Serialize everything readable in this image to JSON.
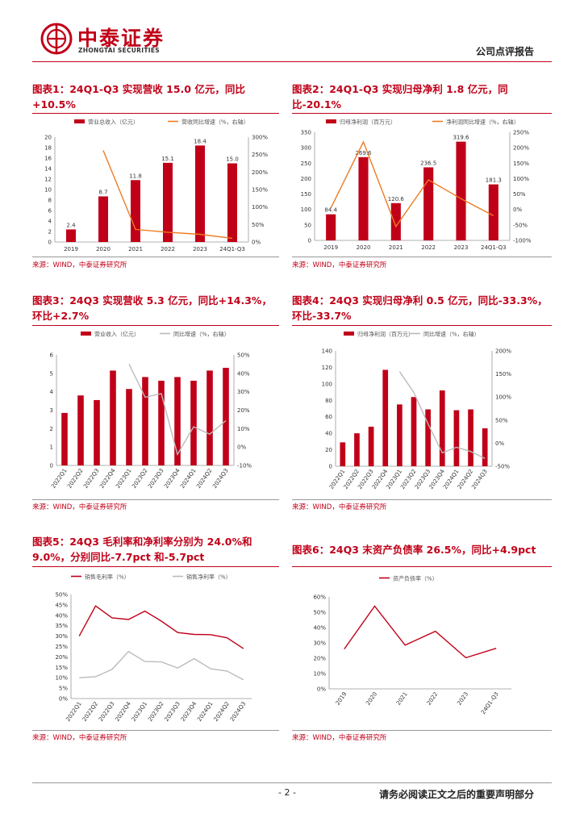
{
  "header": {
    "company_cn": "中泰证券",
    "company_en": "ZHONGTAI SECURITIES",
    "report_type": "公司点评报告",
    "brand_color": "#c00018"
  },
  "footer": {
    "page_number": "- 2 -",
    "disclaimer": "请务必阅读正文之后的重要声明部分"
  },
  "source_text": "来源：WIND，中泰证券研究所",
  "figures": [
    {
      "id": 1,
      "title": "图表1：24Q1-Q3 实现营收 15.0 亿元，同比+10.5%"
    },
    {
      "id": 2,
      "title": "图表2：24Q1-Q3 实现归母净利 1.8 亿元，同比-20.1%"
    },
    {
      "id": 3,
      "title": "图表3：24Q3 实现营收 5.3 亿元，同比+14.3%，环比+2.7%"
    },
    {
      "id": 4,
      "title": "图表4：24Q3 实现归母净利 0.5 亿元，同比-33.3%，环比-33.7%"
    },
    {
      "id": 5,
      "title": "图表5：24Q3 毛利率和净利率分别为 24.0%和 9.0%，分别同比-7.7pct 和-5.7pct"
    },
    {
      "id": 6,
      "title": "图表6：24Q3 末资产负债率 26.5%，同比+4.9pct"
    }
  ],
  "chart_data": [
    {
      "type": "bar",
      "title": "图表1：24Q1-Q3 实现营收 15.0 亿元，同比+10.5%",
      "categories": [
        "2019",
        "2020",
        "2021",
        "2022",
        "2023",
        "24Q1-Q3"
      ],
      "series": [
        {
          "name": "营业总收入（亿元）",
          "type": "bar",
          "axis": "left",
          "values": [
            2.4,
            8.7,
            11.8,
            15.1,
            18.4,
            15.0
          ],
          "labels": [
            "2.4",
            "8.7",
            "11.8",
            "15.1",
            "18.4",
            "15.0"
          ]
        },
        {
          "name": "营收同比增速（%，右轴）",
          "type": "line",
          "axis": "right",
          "values": [
            null,
            262,
            36,
            28,
            22,
            10.5
          ]
        }
      ],
      "ylim_left": [
        0,
        20
      ],
      "ylim_right": [
        0,
        300
      ],
      "yticks_left": [
        "0",
        "2",
        "4",
        "6",
        "8",
        "10",
        "12",
        "14",
        "16",
        "18",
        "20"
      ],
      "yticks_right": [
        "0%",
        "50%",
        "100%",
        "150%",
        "200%",
        "250%",
        "300%"
      ],
      "colors": {
        "bar": "#c00018",
        "line": "#ee7b22"
      }
    },
    {
      "type": "bar",
      "title": "图表2：24Q1-Q3 实现归母净利 1.8 亿元，同比-20.1%",
      "categories": [
        "2019",
        "2020",
        "2021",
        "2022",
        "2023",
        "24Q1-Q3"
      ],
      "series": [
        {
          "name": "归母净利润（百万元）",
          "type": "bar",
          "axis": "left",
          "values": [
            84.4,
            269.6,
            120.6,
            236.5,
            319.6,
            181.3
          ],
          "labels": [
            "84.4",
            "269.6",
            "120.6",
            "236.5",
            "319.6",
            "181.3"
          ]
        },
        {
          "name": "净利润同比增速（%，右轴）",
          "type": "line",
          "axis": "right",
          "values": [
            5,
            219,
            -55,
            96,
            35,
            -20.1
          ]
        }
      ],
      "ylim_left": [
        0,
        350
      ],
      "ylim_right": [
        -100,
        250
      ],
      "yticks_left": [
        "0",
        "50",
        "100",
        "150",
        "200",
        "250",
        "300",
        "350"
      ],
      "yticks_right": [
        "-100%",
        "-50%",
        "0%",
        "50%",
        "100%",
        "150%",
        "200%",
        "250%"
      ],
      "colors": {
        "bar": "#c00018",
        "line": "#ee7b22"
      }
    },
    {
      "type": "bar",
      "title": "图表3：24Q3 实现营收 5.3 亿元，同比+14.3%，环比+2.7%",
      "categories": [
        "2022Q1",
        "2022Q2",
        "2022Q3",
        "2022Q4",
        "2023Q1",
        "2023Q2",
        "2023Q3",
        "2023Q4",
        "2024Q1",
        "2024Q2",
        "2024Q3"
      ],
      "series": [
        {
          "name": "营业收入（亿元）",
          "type": "bar",
          "axis": "left",
          "values": [
            2.85,
            3.8,
            3.55,
            5.15,
            4.15,
            4.8,
            4.6,
            4.8,
            4.6,
            5.15,
            5.3
          ]
        },
        {
          "name": "同比增速（%，右轴）",
          "type": "line",
          "axis": "right",
          "values": [
            null,
            null,
            null,
            null,
            45,
            27,
            29,
            -4,
            11,
            7,
            14.3
          ]
        }
      ],
      "ylim_left": [
        0,
        6
      ],
      "ylim_right": [
        -10,
        50
      ],
      "yticks_left": [
        "0",
        "1",
        "2",
        "3",
        "4",
        "5",
        "6"
      ],
      "yticks_right": [
        "-10%",
        "0%",
        "10%",
        "20%",
        "30%",
        "40%",
        "50%"
      ],
      "colors": {
        "bar": "#c00018",
        "line": "#bbbbbb"
      }
    },
    {
      "type": "bar",
      "title": "图表4：24Q3 实现归母净利 0.5 亿元，同比-33.3%，环比-33.7%",
      "categories": [
        "2022Q1",
        "2022Q2",
        "2022Q3",
        "2022Q4",
        "2023Q1",
        "2023Q2",
        "2023Q3",
        "2023Q4",
        "2024Q1",
        "2024Q2",
        "2024Q3"
      ],
      "series": [
        {
          "name": "归母净利润（百万元）",
          "type": "bar",
          "axis": "left",
          "values": [
            29,
            40,
            48,
            117,
            75,
            84,
            69,
            92,
            68,
            69,
            46
          ]
        },
        {
          "name": "同比增速（%，右轴）",
          "type": "line",
          "axis": "right",
          "values": [
            null,
            null,
            null,
            null,
            155,
            110,
            42,
            -21,
            -9,
            -18,
            -33.3
          ]
        }
      ],
      "ylim_left": [
        0,
        140
      ],
      "ylim_right": [
        -50,
        200
      ],
      "yticks_left": [
        "0",
        "20",
        "40",
        "60",
        "80",
        "100",
        "120",
        "140"
      ],
      "yticks_right": [
        "-50%",
        "0%",
        "50%",
        "100%",
        "150%",
        "200%"
      ],
      "colors": {
        "bar": "#c00018",
        "line": "#bbbbbb"
      }
    },
    {
      "type": "line",
      "title": "图表5：24Q3 毛利率和净利率分别为 24.0%和 9.0%，分别同比-7.7pct 和-5.7pct",
      "categories": [
        "2022Q1",
        "2022Q2",
        "2022Q3",
        "2022Q4",
        "2023Q1",
        "2023Q2",
        "2023Q3",
        "2023Q4",
        "2024Q1",
        "2024Q2",
        "2024Q3"
      ],
      "series": [
        {
          "name": "销售毛利率（%）",
          "values": [
            30,
            44.5,
            38.8,
            38,
            42,
            37.2,
            31.7,
            30.8,
            30.7,
            29.2,
            24.0
          ]
        },
        {
          "name": "销售净利率（%）",
          "values": [
            10,
            10.5,
            14,
            22.6,
            17.8,
            17.6,
            14.7,
            19.2,
            14.3,
            13.2,
            9.0
          ]
        }
      ],
      "ylim": [
        0,
        50
      ],
      "yticks": [
        "0%",
        "5%",
        "10%",
        "15%",
        "20%",
        "25%",
        "30%",
        "35%",
        "40%",
        "45%",
        "50%"
      ],
      "colors": {
        "gross": "#c00018",
        "net": "#bbbbbb"
      }
    },
    {
      "type": "line",
      "title": "图表6：24Q3 末资产负债率 26.5%，同比+4.9pct",
      "categories": [
        "2019",
        "2020",
        "2021",
        "2022",
        "2023",
        "24Q1-Q3"
      ],
      "series": [
        {
          "name": "资产负债率（%）",
          "values": [
            26,
            54,
            28.5,
            37.6,
            20.3,
            26.5
          ]
        }
      ],
      "ylim": [
        0,
        60
      ],
      "yticks": [
        "0%",
        "10%",
        "20%",
        "30%",
        "40%",
        "50%",
        "60%"
      ],
      "colors": {
        "line": "#c00018"
      }
    }
  ]
}
